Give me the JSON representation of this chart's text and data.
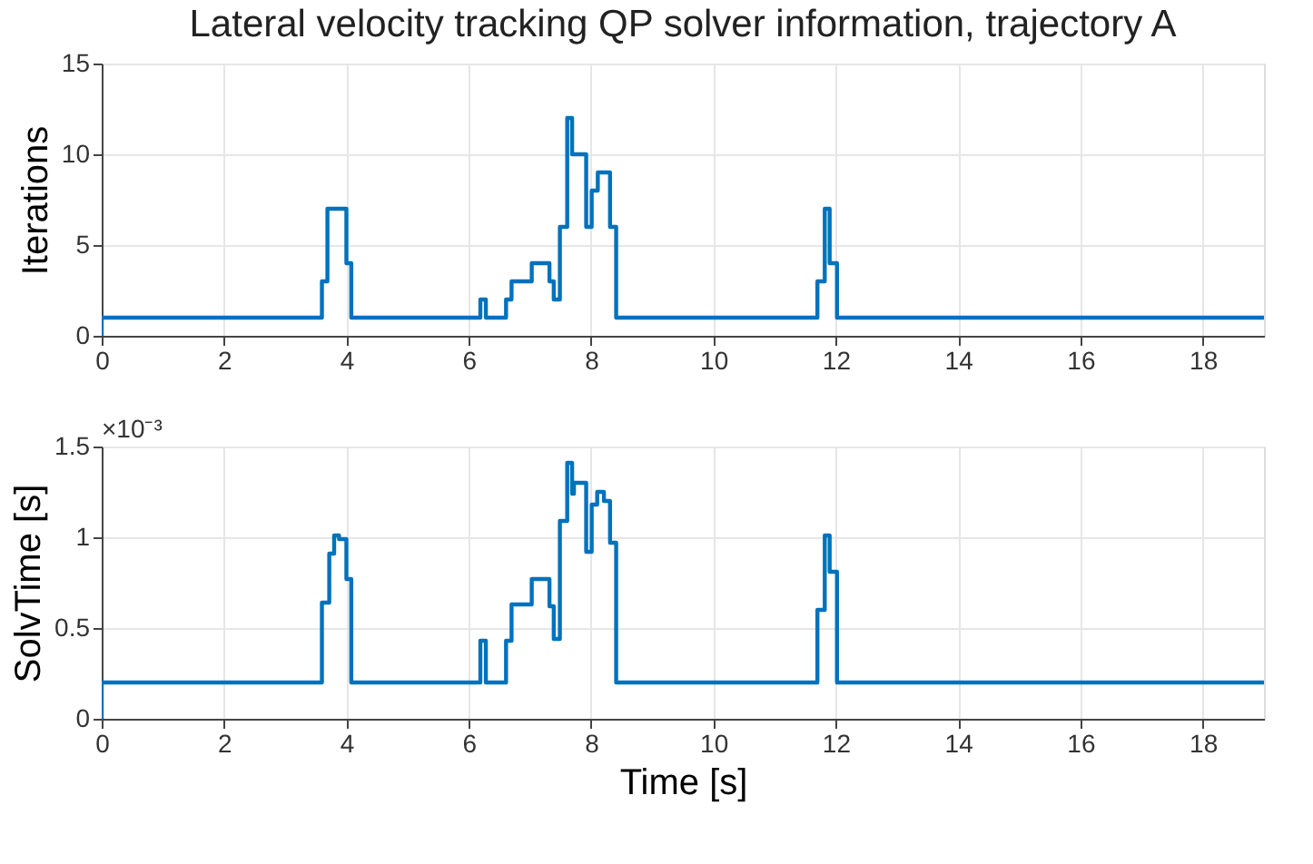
{
  "chart_data": [
    {
      "type": "step",
      "title": "Lateral velocity tracking QP solver information, trajectory A",
      "ylabel": "Iterations",
      "x": [
        0,
        0,
        3.6,
        3.69,
        4.0,
        4.08,
        6.19,
        6.28,
        6.61,
        6.7,
        7.03,
        7.32,
        7.39,
        7.49,
        7.61,
        7.69,
        7.92,
        8.01,
        8.11,
        8.31,
        8.41,
        11.7,
        11.82,
        11.9,
        12.02,
        19
      ],
      "series": [
        {
          "color": "#0072bd",
          "values": [
            0,
            1,
            3,
            7,
            4,
            1,
            2,
            1,
            2,
            3,
            4,
            3,
            2,
            6,
            12,
            10,
            6,
            8,
            9,
            6,
            1,
            3,
            7,
            4,
            1,
            1
          ]
        }
      ],
      "xlim": [
        0,
        19
      ],
      "xticks": [
        0,
        2,
        4,
        6,
        8,
        10,
        12,
        14,
        16,
        18
      ],
      "ylim": [
        0,
        15
      ],
      "yticks": [
        0,
        5,
        10,
        15
      ],
      "grid": true,
      "line_style": "solid",
      "marker": "none"
    },
    {
      "type": "step",
      "xlabel": "Time [s]",
      "ylabel": "SolvTime [s]",
      "annotations": [
        "×10⁻³"
      ],
      "x": [
        0,
        0,
        3.6,
        3.72,
        3.8,
        3.88,
        4.0,
        4.08,
        6.19,
        6.28,
        6.61,
        6.7,
        7.03,
        7.32,
        7.39,
        7.49,
        7.61,
        7.69,
        7.72,
        7.92,
        8.01,
        8.1,
        8.21,
        8.31,
        8.41,
        11.7,
        11.82,
        11.9,
        12.02,
        19
      ],
      "series": [
        {
          "color": "#0072bd",
          "values": [
            0,
            0.2,
            0.64,
            0.91,
            1.01,
            0.99,
            0.77,
            0.2,
            0.43,
            0.2,
            0.43,
            0.63,
            0.77,
            0.62,
            0.44,
            1.09,
            1.41,
            1.24,
            1.3,
            0.92,
            1.18,
            1.25,
            1.2,
            0.97,
            0.2,
            0.6,
            1.01,
            0.81,
            0.2,
            0.2
          ]
        }
      ],
      "xlim": [
        0,
        19
      ],
      "xticks": [
        0,
        2,
        4,
        6,
        8,
        10,
        12,
        14,
        16,
        18
      ],
      "ylim": [
        0,
        1.5
      ],
      "yticks": [
        0,
        0.5,
        1,
        1.5
      ],
      "grid": true,
      "line_style": "solid",
      "marker": "none"
    }
  ]
}
